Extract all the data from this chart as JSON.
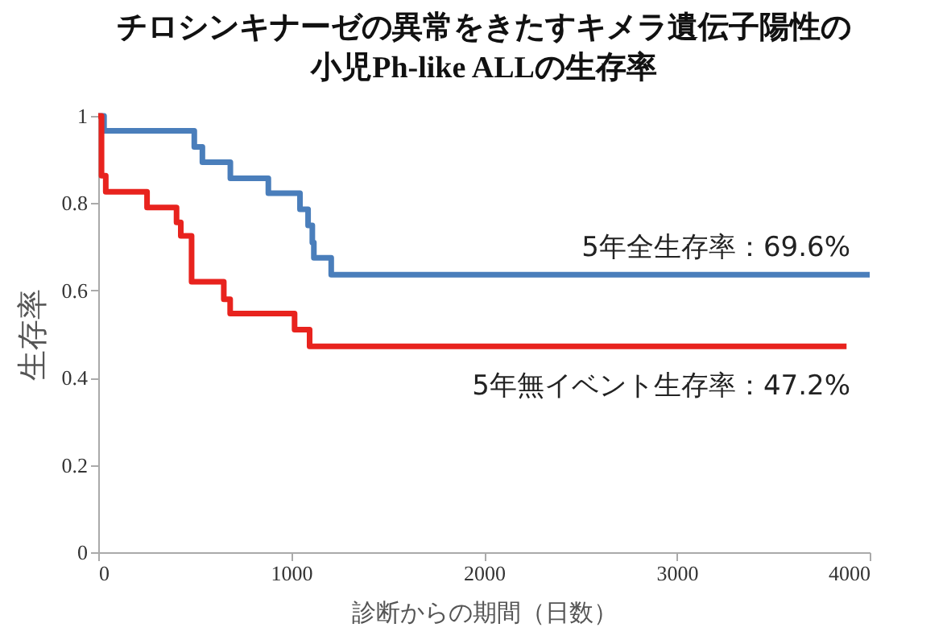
{
  "chart_data": {
    "type": "step",
    "title": "チロシンキナーゼの異常をきたすキメラ遺伝子陽性の",
    "subtitle": "小児Ph-like ALLの生存率",
    "xlabel": "診断からの期間（日数）",
    "ylabel": "生存率",
    "series": [
      {
        "color": "#4a7ebb",
        "x": [
          0,
          30,
          498,
          540,
          685,
          882,
          1046,
          1088,
          1110,
          1118,
          1208,
          4000
        ],
        "values": [
          1,
          0.966,
          0.929,
          0.894,
          0.857,
          0.823,
          0.786,
          0.749,
          0.71,
          0.675,
          0.636,
          0.636
        ]
      },
      {
        "color": "#e8231e",
        "x": [
          0,
          17,
          39,
          253,
          406,
          428,
          484,
          651,
          684,
          1018,
          1096,
          3880
        ],
        "values": [
          1,
          0.863,
          0.826,
          0.79,
          0.756,
          0.725,
          0.62,
          0.58,
          0.547,
          0.51,
          0.472,
          0.472
        ]
      }
    ],
    "annotations": [
      "5年全生存率：69.6%",
      "5年無イベント生存率：47.2%"
    ],
    "xlim": [
      0,
      4000
    ],
    "xticks": [
      0,
      1000,
      2000,
      3000,
      4000
    ],
    "ylim": [
      0,
      1
    ],
    "yticks": [
      0,
      0.2,
      0.4,
      0.6,
      0.8,
      1
    ],
    "grid": false,
    "legend": false,
    "line_style": "solid",
    "marker": "none"
  }
}
